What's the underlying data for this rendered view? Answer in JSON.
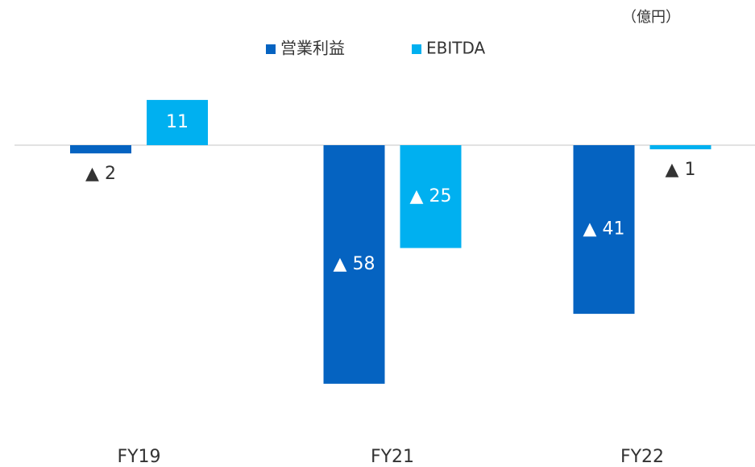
{
  "chart_data": {
    "type": "bar",
    "unit": "（億円）",
    "categories": [
      "FY19",
      "FY21",
      "FY22"
    ],
    "series": [
      {
        "name": "営業利益",
        "color": "#0563c1",
        "values": [
          -2,
          -58,
          -41
        ],
        "value_labels": [
          "▲ 2",
          "▲ 58",
          "▲ 41"
        ]
      },
      {
        "name": "EBITDA",
        "color": "#00b0f0",
        "values": [
          11,
          -25,
          -1
        ],
        "value_labels": [
          "11",
          "▲ 25",
          "▲ 1"
        ]
      }
    ]
  }
}
